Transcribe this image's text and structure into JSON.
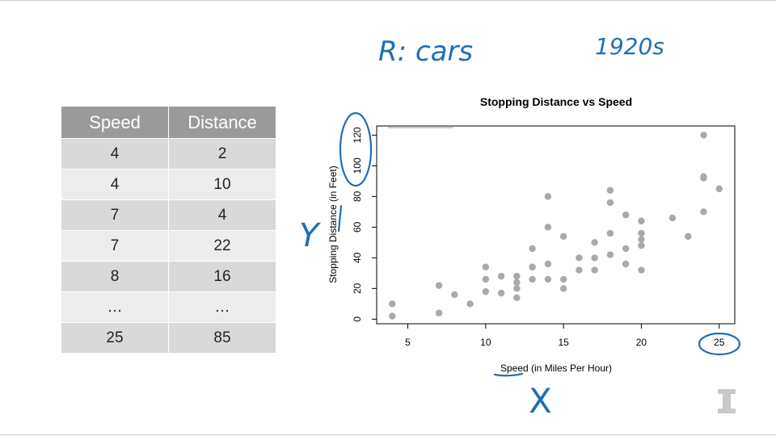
{
  "table": {
    "headers": [
      "Speed",
      "Distance"
    ],
    "rows": [
      [
        "4",
        "2"
      ],
      [
        "4",
        "10"
      ],
      [
        "7",
        "4"
      ],
      [
        "7",
        "22"
      ],
      [
        "8",
        "16"
      ],
      [
        "…",
        "…"
      ],
      [
        "25",
        "85"
      ]
    ]
  },
  "annotations": {
    "r_cars": "R: cars",
    "decade": "1920s",
    "y_label": "Y",
    "x_label": "X"
  },
  "colors": {
    "ink": "#1f6fb5",
    "point": "#a9a9a9",
    "header_bg": "#9a9a9a",
    "row_dark": "#d9d9d9",
    "row_light": "#ececec"
  },
  "chart_data": {
    "type": "scatter",
    "title": "Stopping Distance vs Speed",
    "xlabel": "Speed (in Miles Per Hour)",
    "ylabel": "Stopping Distance (in Feet)",
    "xlim": [
      3,
      26
    ],
    "ylim": [
      -3,
      126
    ],
    "xticks": [
      5,
      10,
      15,
      20,
      25
    ],
    "yticks": [
      0,
      20,
      40,
      60,
      80,
      100,
      120
    ],
    "grid": false,
    "points": [
      [
        4,
        2
      ],
      [
        4,
        10
      ],
      [
        7,
        4
      ],
      [
        7,
        22
      ],
      [
        8,
        16
      ],
      [
        9,
        10
      ],
      [
        10,
        18
      ],
      [
        10,
        26
      ],
      [
        10,
        34
      ],
      [
        11,
        17
      ],
      [
        11,
        28
      ],
      [
        12,
        14
      ],
      [
        12,
        20
      ],
      [
        12,
        24
      ],
      [
        12,
        28
      ],
      [
        13,
        26
      ],
      [
        13,
        34
      ],
      [
        13,
        34
      ],
      [
        13,
        46
      ],
      [
        14,
        26
      ],
      [
        14,
        36
      ],
      [
        14,
        60
      ],
      [
        14,
        80
      ],
      [
        15,
        20
      ],
      [
        15,
        26
      ],
      [
        15,
        54
      ],
      [
        16,
        32
      ],
      [
        16,
        40
      ],
      [
        17,
        32
      ],
      [
        17,
        40
      ],
      [
        17,
        50
      ],
      [
        18,
        42
      ],
      [
        18,
        56
      ],
      [
        18,
        76
      ],
      [
        18,
        84
      ],
      [
        19,
        36
      ],
      [
        19,
        46
      ],
      [
        19,
        68
      ],
      [
        20,
        32
      ],
      [
        20,
        48
      ],
      [
        20,
        52
      ],
      [
        20,
        56
      ],
      [
        20,
        64
      ],
      [
        22,
        66
      ],
      [
        23,
        54
      ],
      [
        24,
        70
      ],
      [
        24,
        92
      ],
      [
        24,
        93
      ],
      [
        24,
        120
      ],
      [
        25,
        85
      ]
    ]
  }
}
